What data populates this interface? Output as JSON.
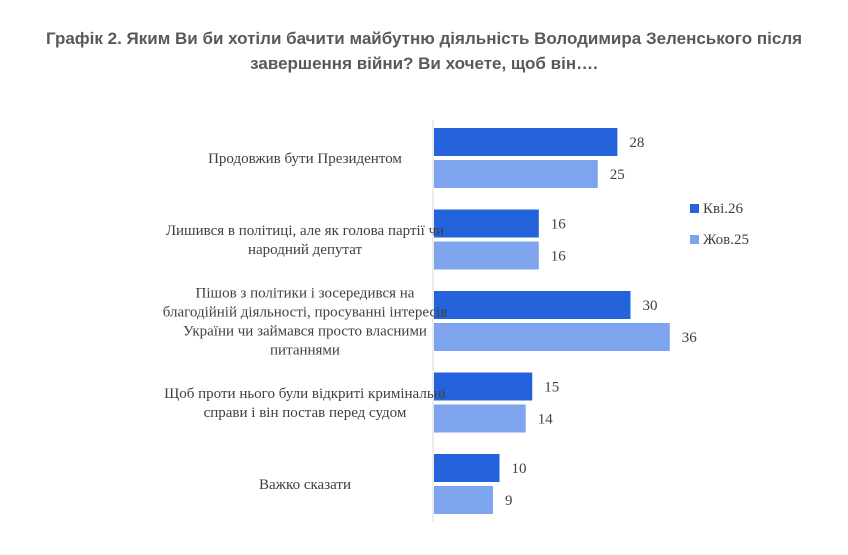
{
  "chart_data": {
    "type": "bar",
    "orientation": "horizontal",
    "title": "Графік 2. Яким Ви би хотіли бачити майбутню діяльність Володимира Зеленського після завершення війни? Ви хочете, щоб він….",
    "categories": [
      [
        "Продовжив бути Президентом"
      ],
      [
        "Лишився в політиці, але як голова партії чи",
        "народний депутат"
      ],
      [
        "Пішов з політики і зосередився на",
        "благодійній діяльності, просуванні інтересів",
        "України чи займався просто власними",
        "питаннями"
      ],
      [
        "Щоб проти нього були відкриті кримінальні",
        "справи і він постав перед судом"
      ],
      [
        "Важко сказати"
      ]
    ],
    "series": [
      {
        "name": "Кві.26",
        "color": "#2563dc",
        "values": [
          28,
          16,
          30,
          15,
          10
        ]
      },
      {
        "name": "Жов.25",
        "color": "#7ea4ee",
        "values": [
          25,
          16,
          36,
          14,
          9
        ]
      }
    ],
    "xlim": [
      0,
      40
    ],
    "grid": false,
    "legend_position": "right"
  }
}
